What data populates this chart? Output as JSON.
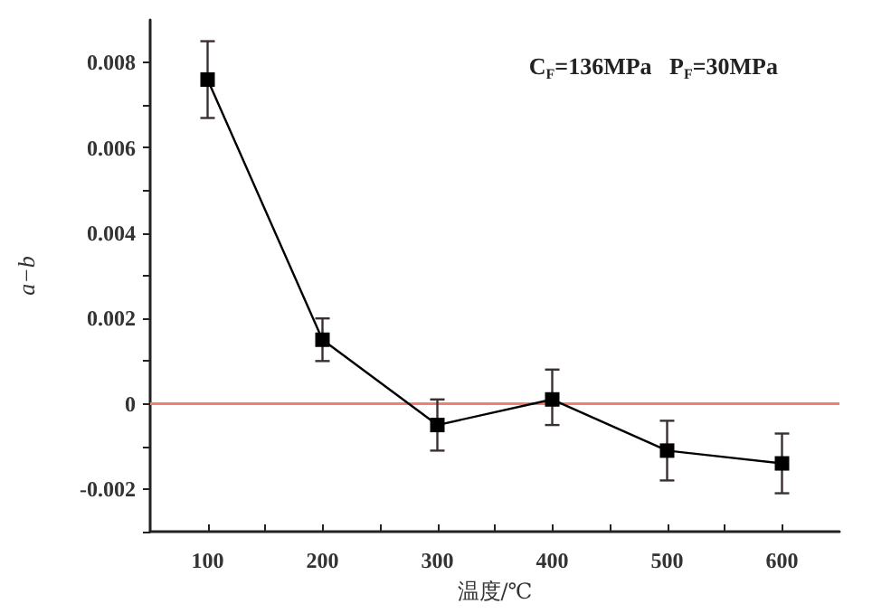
{
  "chart_data": {
    "type": "line",
    "xlabel": "温度/℃",
    "ylabel": "a−b",
    "x": [
      100,
      200,
      300,
      400,
      500,
      600
    ],
    "series": [
      {
        "color": "#000000",
        "values": [
          0.0076,
          0.0015,
          -0.0005,
          0.0001,
          -0.0011,
          -0.0014
        ],
        "errors": [
          [
            0.0067,
            0.0085
          ],
          [
            0.001,
            0.002
          ],
          [
            -0.0011,
            0.0001
          ],
          [
            -0.0005,
            0.0008
          ],
          [
            -0.0018,
            -0.0004
          ],
          [
            -0.0021,
            -0.0007
          ]
        ]
      }
    ],
    "xlim": [
      50,
      650
    ],
    "xticks": [
      100,
      {
        "value": 150,
        "label": null
      },
      200,
      {
        "value": 250,
        "label": null
      },
      300,
      {
        "value": 350,
        "label": null
      },
      400,
      {
        "value": 450,
        "label": null
      },
      500,
      {
        "value": 550,
        "label": null
      },
      600
    ],
    "ylim": [
      -0.003,
      0.009
    ],
    "yticks": [
      {
        "value": -0.003,
        "label": null
      },
      -0.002,
      {
        "value": -0.001,
        "label": null
      },
      0,
      {
        "value": 0.001,
        "label": null
      },
      0.002,
      {
        "value": 0.003,
        "label": null
      },
      0.004,
      {
        "value": 0.005,
        "label": null
      },
      0.006,
      {
        "value": 0.007,
        "label": null
      },
      0.008
    ],
    "ref_lines": [
      {
        "axis": "y",
        "value": 0,
        "color": "#f08070",
        "line_style": "solid"
      }
    ],
    "annotations": [
      "C$_{F}$=136MPa   P$_{F}$=30MPa"
    ],
    "marker": "square",
    "line_style": "solid",
    "grid": false
  }
}
